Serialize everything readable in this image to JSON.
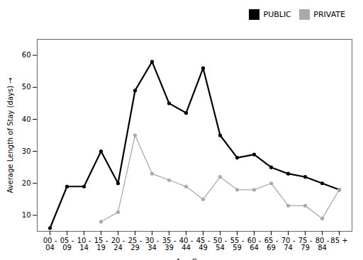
{
  "chart_data": {
    "type": "line",
    "xlabel": "Age Group",
    "ylabel": "Average Length of Stay (days)",
    "categories": [
      "00 -\n04",
      "05 -\n09",
      "10 -\n14",
      "15 -\n19",
      "20 -\n24",
      "25 -\n29",
      "30 -\n34",
      "35 -\n39",
      "40 -\n44",
      "45 -\n49",
      "50 -\n54",
      "55 -\n59",
      "60 -\n64",
      "65 -\n69",
      "70 -\n74",
      "75 -\n79",
      "80 -\n84",
      "85 +"
    ],
    "series": [
      {
        "name": "PUBLIC",
        "color": "#000000",
        "marker": "circle",
        "values": [
          6,
          19,
          19,
          30,
          20,
          49,
          58,
          45,
          42,
          56,
          35,
          28,
          29,
          25,
          23,
          22,
          20,
          18
        ]
      },
      {
        "name": "PRIVATE",
        "color": "#aaaaaa",
        "marker": "circle",
        "values": [
          null,
          null,
          null,
          8,
          11,
          35,
          23,
          21,
          19,
          15,
          22,
          18,
          18,
          20,
          13,
          13,
          9,
          18
        ]
      }
    ],
    "ylim": [
      5,
      65
    ],
    "yticks": [
      10,
      20,
      30,
      40,
      50,
      60
    ],
    "grid": false,
    "legend": "upper right"
  }
}
